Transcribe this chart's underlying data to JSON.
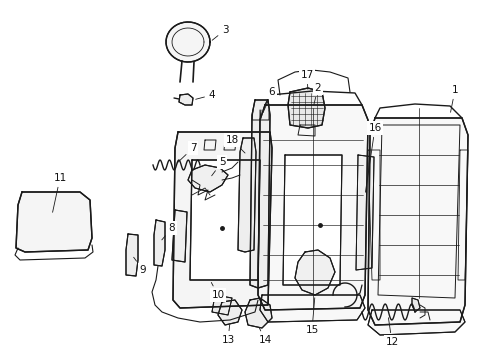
{
  "bg_color": "#ffffff",
  "line_color": "#1a1a1a",
  "label_color": "#111111",
  "figsize": [
    4.89,
    3.6
  ],
  "dpi": 100,
  "xlim": [
    0,
    489
  ],
  "ylim": [
    0,
    360
  ]
}
